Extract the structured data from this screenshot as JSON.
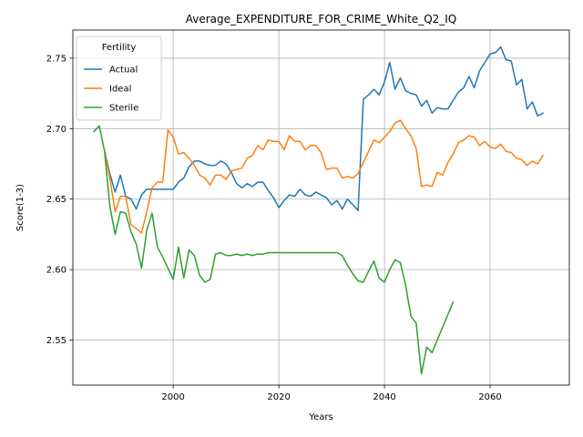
{
  "chart_data": {
    "type": "line",
    "title": "Average_EXPENDITURE_FOR_CRIME_White_Q2_IQ",
    "xlabel": "Years",
    "ylabel": "Score(1-3)",
    "xlim": [
      1981,
      2075
    ],
    "ylim": [
      2.518,
      2.77
    ],
    "xticks": [
      2000,
      2020,
      2040,
      2060
    ],
    "yticks": [
      2.55,
      2.6,
      2.65,
      2.7,
      2.75
    ],
    "ytick_labels": [
      "2.55",
      "2.60",
      "2.65",
      "2.70",
      "2.75"
    ],
    "grid": true,
    "legend": {
      "title": "Fertility",
      "position": "top-left"
    },
    "series": [
      {
        "name": "Actual",
        "color": "#1f77b4",
        "x": [
          1987,
          1988,
          1989,
          1990,
          1991,
          1992,
          1993,
          1994,
          1995,
          1996,
          1997,
          1998,
          1999,
          2000,
          2001,
          2002,
          2003,
          2004,
          2005,
          2006,
          2007,
          2008,
          2009,
          2010,
          2011,
          2012,
          2013,
          2014,
          2015,
          2016,
          2017,
          2018,
          2019,
          2020,
          2021,
          2022,
          2023,
          2024,
          2025,
          2026,
          2027,
          2028,
          2029,
          2030,
          2031,
          2032,
          2033,
          2034,
          2035,
          2036,
          2037,
          2038,
          2039,
          2040,
          2041,
          2042,
          2043,
          2044,
          2045,
          2046,
          2047,
          2048,
          2049,
          2050,
          2051,
          2052,
          2053,
          2054,
          2055,
          2056,
          2057,
          2058,
          2059,
          2060,
          2061,
          2062,
          2063,
          2064,
          2065,
          2066,
          2067,
          2068,
          2069,
          2070
        ],
        "values": [
          2.684,
          2.668,
          2.655,
          2.667,
          2.652,
          2.65,
          2.643,
          2.653,
          2.657,
          2.657,
          2.657,
          2.657,
          2.657,
          2.657,
          2.662,
          2.665,
          2.673,
          2.677,
          2.677,
          2.675,
          2.674,
          2.674,
          2.677,
          2.675,
          2.669,
          2.661,
          2.658,
          2.661,
          2.659,
          2.662,
          2.662,
          2.656,
          2.651,
          2.644,
          2.649,
          2.653,
          2.652,
          2.657,
          2.653,
          2.652,
          2.655,
          2.653,
          2.651,
          2.646,
          2.649,
          2.643,
          2.65,
          2.646,
          2.642,
          2.721,
          2.724,
          2.728,
          2.724,
          2.733,
          2.747,
          2.728,
          2.736,
          2.727,
          2.725,
          2.724,
          2.716,
          2.72,
          2.711,
          2.715,
          2.714,
          2.714,
          2.72,
          2.726,
          2.729,
          2.737,
          2.729,
          2.741,
          2.747,
          2.753,
          2.754,
          2.758,
          2.749,
          2.748,
          2.731,
          2.735,
          2.714,
          2.719,
          2.709,
          2.711
        ]
      },
      {
        "name": "Ideal",
        "color": "#ff7f0e",
        "x": [
          1987,
          1988,
          1989,
          1990,
          1991,
          1992,
          1993,
          1994,
          1995,
          1996,
          1997,
          1998,
          1999,
          2000,
          2001,
          2002,
          2003,
          2004,
          2005,
          2006,
          2007,
          2008,
          2009,
          2010,
          2011,
          2012,
          2013,
          2014,
          2015,
          2016,
          2017,
          2018,
          2019,
          2020,
          2021,
          2022,
          2023,
          2024,
          2025,
          2026,
          2027,
          2028,
          2029,
          2030,
          2031,
          2032,
          2033,
          2034,
          2035,
          2036,
          2037,
          2038,
          2039,
          2040,
          2041,
          2042,
          2043,
          2044,
          2045,
          2046,
          2047,
          2048,
          2049,
          2050,
          2051,
          2052,
          2053,
          2054,
          2055,
          2056,
          2057,
          2058,
          2059,
          2060,
          2061,
          2062,
          2063,
          2064,
          2065,
          2066,
          2067,
          2068,
          2069,
          2070
        ],
        "values": [
          2.684,
          2.665,
          2.641,
          2.652,
          2.652,
          2.632,
          2.629,
          2.626,
          2.641,
          2.658,
          2.662,
          2.662,
          2.699,
          2.694,
          2.682,
          2.683,
          2.679,
          2.674,
          2.667,
          2.665,
          2.66,
          2.667,
          2.667,
          2.664,
          2.67,
          2.671,
          2.672,
          2.679,
          2.681,
          2.688,
          2.685,
          2.692,
          2.691,
          2.691,
          2.685,
          2.695,
          2.691,
          2.691,
          2.685,
          2.688,
          2.688,
          2.683,
          2.671,
          2.672,
          2.672,
          2.665,
          2.666,
          2.665,
          2.668,
          2.676,
          2.684,
          2.692,
          2.69,
          2.694,
          2.698,
          2.704,
          2.706,
          2.7,
          2.695,
          2.686,
          2.659,
          2.66,
          2.659,
          2.669,
          2.667,
          2.676,
          2.682,
          2.69,
          2.692,
          2.695,
          2.694,
          2.688,
          2.691,
          2.687,
          2.686,
          2.689,
          2.684,
          2.683,
          2.679,
          2.678,
          2.674,
          2.677,
          2.675,
          2.681
        ]
      },
      {
        "name": "Sterile",
        "color": "#2ca02c",
        "x": [
          1985,
          1986,
          1987,
          1988,
          1989,
          1990,
          1991,
          1992,
          1993,
          1994,
          1995,
          1996,
          1997,
          1998,
          1999,
          2000,
          2001,
          2002,
          2003,
          2004,
          2005,
          2006,
          2007,
          2008,
          2009,
          2010,
          2011,
          2012,
          2013,
          2014,
          2015,
          2016,
          2017,
          2018,
          2019,
          2020,
          2021,
          2022,
          2023,
          2024,
          2025,
          2026,
          2027,
          2028,
          2029,
          2030,
          2031,
          2032,
          2033,
          2034,
          2035,
          2036,
          2037,
          2038,
          2039,
          2040,
          2041,
          2042,
          2043,
          2044,
          2045,
          2046,
          2047,
          2048,
          2049,
          2050,
          2051,
          2052,
          2053
        ],
        "values": [
          2.698,
          2.702,
          2.684,
          2.645,
          2.625,
          2.641,
          2.64,
          2.627,
          2.618,
          2.601,
          2.628,
          2.64,
          2.616,
          2.609,
          2.601,
          2.593,
          2.616,
          2.594,
          2.614,
          2.61,
          2.596,
          2.591,
          2.593,
          2.611,
          2.612,
          2.61,
          2.61,
          2.611,
          2.61,
          2.611,
          2.61,
          2.611,
          2.611,
          2.612,
          2.612,
          2.612,
          2.612,
          2.612,
          2.612,
          2.612,
          2.612,
          2.612,
          2.612,
          2.612,
          2.612,
          2.612,
          2.612,
          2.61,
          2.603,
          2.597,
          2.592,
          2.591,
          2.599,
          2.606,
          2.594,
          2.591,
          2.6,
          2.607,
          2.605,
          2.589,
          2.567,
          2.562,
          2.526,
          2.545,
          2.541,
          2.55,
          2.559,
          2.568,
          2.577
        ]
      }
    ]
  }
}
